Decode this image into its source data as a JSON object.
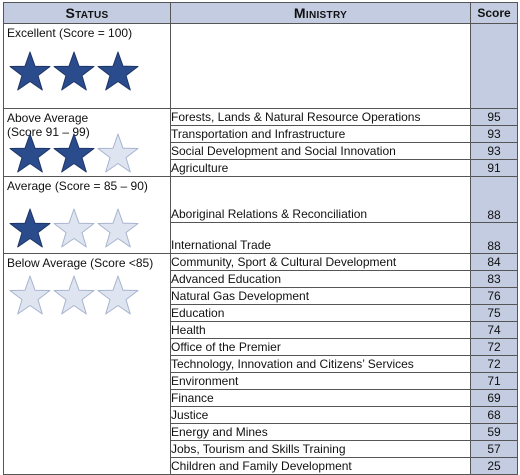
{
  "headers": {
    "status": "Status",
    "ministry": "Ministry",
    "score": "Score"
  },
  "groups": [
    {
      "label": "Excellent (Score = 100)",
      "stars_filled": 3,
      "stars_total": 3
    },
    {
      "label": "Above Average\n(Score 91 – 99)",
      "stars_filled": 2,
      "stars_total": 3
    },
    {
      "label": "Average (Score = 85 – 90)",
      "stars_filled": 1,
      "stars_total": 3
    },
    {
      "label": "Below Average (Score <85)",
      "stars_filled": 0,
      "stars_total": 3
    }
  ],
  "rows": [
    {
      "ministry": "Forests, Lands & Natural Resource Operations",
      "score": "95"
    },
    {
      "ministry": "Transportation and Infrastructure",
      "score": "93"
    },
    {
      "ministry": "Social Development and Social Innovation",
      "score": "93"
    },
    {
      "ministry": "Agriculture",
      "score": "91"
    },
    {
      "ministry": "Aboriginal Relations & Reconciliation",
      "score": "88"
    },
    {
      "ministry": "International Trade",
      "score": "88"
    },
    {
      "ministry": "Community, Sport & Cultural Development",
      "score": "84"
    },
    {
      "ministry": "Advanced Education",
      "score": "83"
    },
    {
      "ministry": "Natural Gas Development",
      "score": "76"
    },
    {
      "ministry": "Education",
      "score": "75"
    },
    {
      "ministry": "Health",
      "score": "74"
    },
    {
      "ministry": "Office of the Premier",
      "score": "72"
    },
    {
      "ministry": "Technology, Innovation and Citizens’ Services",
      "score": "72"
    },
    {
      "ministry": "Environment",
      "score": "71"
    },
    {
      "ministry": "Finance",
      "score": "69"
    },
    {
      "ministry": "Justice",
      "score": "68"
    },
    {
      "ministry": "Energy and Mines",
      "score": "59"
    },
    {
      "ministry": "Jobs, Tourism and Skills Training",
      "score": "57"
    },
    {
      "ministry": "Children and Family Development",
      "score": "25"
    }
  ],
  "colors": {
    "header_bg": "#c3cce0",
    "score_bg": "#c3cce0",
    "star_filled": "#2b4c8c",
    "star_empty": "#dfe5f0"
  }
}
